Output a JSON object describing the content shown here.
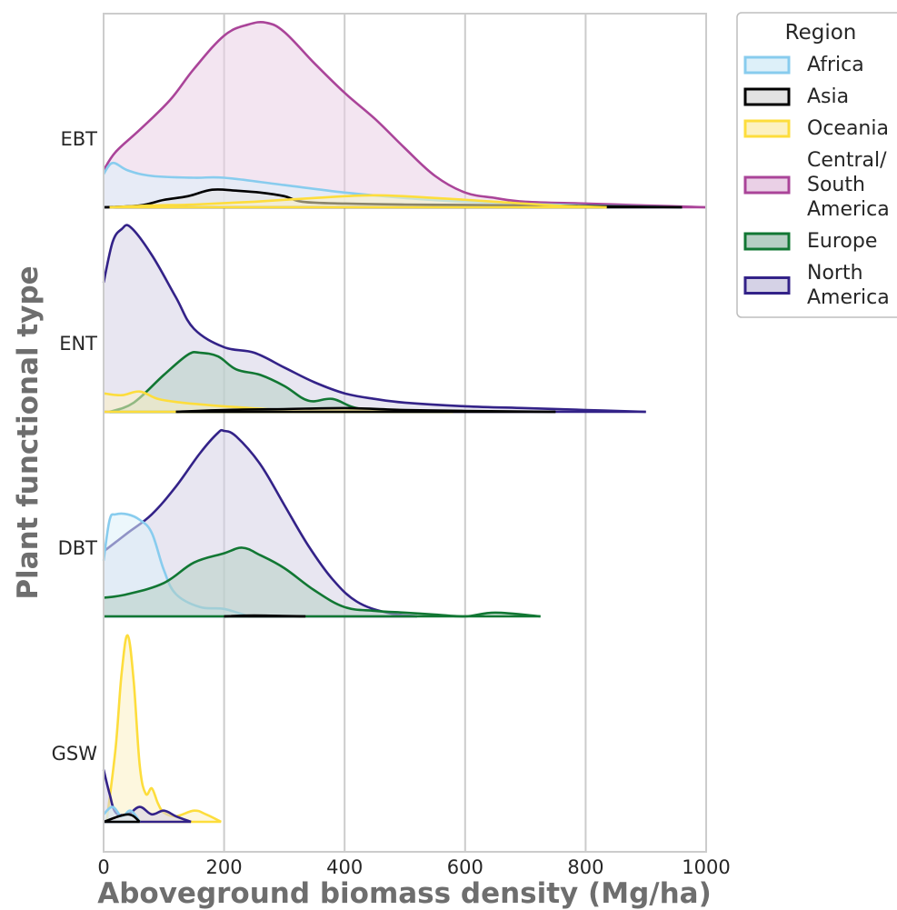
{
  "chart_data": {
    "type": "area",
    "subtype": "ridgeline-density",
    "xlabel": "Aboveground biomass density (Mg/ha)",
    "ylabel": "Plant functional type",
    "xlim": [
      0,
      1000
    ],
    "x_ticks": [
      0,
      200,
      400,
      600,
      800,
      1000
    ],
    "grid": "vertical",
    "categories": [
      "EBT",
      "ENT",
      "DBT",
      "GSW"
    ],
    "legend": {
      "title": "Region",
      "placement": "outside-top-right",
      "entries": [
        {
          "label": "Africa",
          "line": "Africa"
        },
        {
          "label": "Asia",
          "line": "Asia"
        },
        {
          "label": "Oceania",
          "line": "Oceania"
        },
        {
          "label": "Central/\nSouth\nAmerica",
          "line": "Central/ South America"
        },
        {
          "label": "Europe",
          "line": "Europe"
        },
        {
          "label": "North\nAmerica",
          "line": "North America"
        }
      ]
    },
    "region_colors": {
      "Africa": {
        "stroke": "#88ccee",
        "fill": "#ddf0f9"
      },
      "Asia": {
        "stroke": "#000000",
        "fill": "#e3e3e3"
      },
      "Oceania": {
        "stroke": "#fddd3c",
        "fill": "#fcf1c2"
      },
      "Central/ South America": {
        "stroke": "#aa4499",
        "fill": "#ead0e6"
      },
      "Europe": {
        "stroke": "#117733",
        "fill": "#b6cfc4"
      },
      "North America": {
        "stroke": "#332288",
        "fill": "#d5d2e6"
      }
    },
    "y_scale_note": "relative density per row, peak of tallest curve = 1",
    "series": [
      {
        "category": "EBT",
        "region": "Central/ South America",
        "x": [
          0,
          20,
          60,
          110,
          150,
          200,
          240,
          270,
          300,
          350,
          400,
          450,
          500,
          550,
          600,
          650,
          700,
          800,
          900,
          1000
        ],
        "y": [
          0.2,
          0.3,
          0.42,
          0.58,
          0.75,
          0.93,
          0.99,
          1.0,
          0.95,
          0.78,
          0.62,
          0.48,
          0.32,
          0.17,
          0.08,
          0.05,
          0.03,
          0.02,
          0.01,
          0.0
        ]
      },
      {
        "category": "EBT",
        "region": "Africa",
        "x": [
          0,
          15,
          40,
          80,
          150,
          200,
          300,
          400,
          500,
          600,
          800,
          960
        ],
        "y": [
          0.18,
          0.24,
          0.2,
          0.17,
          0.16,
          0.16,
          0.12,
          0.08,
          0.05,
          0.03,
          0.01,
          0.0
        ]
      },
      {
        "category": "EBT",
        "region": "Asia",
        "x": [
          0,
          60,
          100,
          140,
          180,
          220,
          260,
          300,
          330,
          400,
          500,
          700,
          960
        ],
        "y": [
          0.0,
          0.01,
          0.04,
          0.06,
          0.095,
          0.09,
          0.08,
          0.06,
          0.03,
          0.02,
          0.015,
          0.01,
          0.0
        ]
      },
      {
        "category": "EBT",
        "region": "Oceania",
        "x": [
          10,
          80,
          150,
          250,
          350,
          450,
          550,
          650,
          750,
          835
        ],
        "y": [
          0.0,
          0.01,
          0.015,
          0.03,
          0.05,
          0.065,
          0.05,
          0.03,
          0.01,
          0.0
        ]
      },
      {
        "category": "ENT",
        "region": "North America",
        "x": [
          0,
          15,
          30,
          45,
          80,
          120,
          150,
          200,
          250,
          300,
          350,
          400,
          450,
          500,
          600,
          700,
          800,
          900
        ],
        "y": [
          0.7,
          0.92,
          0.99,
          1.0,
          0.85,
          0.62,
          0.45,
          0.35,
          0.32,
          0.24,
          0.16,
          0.1,
          0.07,
          0.05,
          0.03,
          0.02,
          0.01,
          0.0
        ]
      },
      {
        "category": "ENT",
        "region": "Europe",
        "x": [
          10,
          50,
          100,
          140,
          160,
          190,
          220,
          260,
          300,
          340,
          380,
          420,
          480,
          580
        ],
        "y": [
          0.0,
          0.05,
          0.2,
          0.31,
          0.32,
          0.3,
          0.23,
          0.2,
          0.14,
          0.06,
          0.07,
          0.02,
          0.01,
          0.0
        ]
      },
      {
        "category": "ENT",
        "region": "Oceania",
        "x": [
          0,
          30,
          60,
          90,
          130,
          200,
          300,
          400,
          500,
          580
        ],
        "y": [
          0.1,
          0.09,
          0.11,
          0.07,
          0.05,
          0.03,
          0.01,
          0.01,
          0.005,
          0.0
        ]
      },
      {
        "category": "ENT",
        "region": "Asia",
        "x": [
          120,
          200,
          300,
          400,
          500,
          600,
          750
        ],
        "y": [
          0.0,
          0.01,
          0.015,
          0.02,
          0.01,
          0.005,
          0.0
        ]
      },
      {
        "category": "DBT",
        "region": "North America",
        "x": [
          0,
          40,
          80,
          120,
          160,
          190,
          200,
          220,
          260,
          300,
          340,
          380,
          420,
          470,
          520
        ],
        "y": [
          0.35,
          0.45,
          0.55,
          0.7,
          0.88,
          0.99,
          1.0,
          0.97,
          0.82,
          0.6,
          0.38,
          0.2,
          0.08,
          0.02,
          0.0
        ]
      },
      {
        "category": "DBT",
        "region": "Africa",
        "x": [
          0,
          10,
          20,
          40,
          60,
          80,
          100,
          120,
          160,
          200,
          240
        ],
        "y": [
          0.3,
          0.52,
          0.55,
          0.55,
          0.52,
          0.45,
          0.25,
          0.12,
          0.05,
          0.04,
          0.0
        ]
      },
      {
        "category": "DBT",
        "region": "Europe",
        "x": [
          0,
          40,
          100,
          150,
          200,
          230,
          260,
          300,
          350,
          400,
          450,
          500,
          550,
          600,
          650,
          725
        ],
        "y": [
          0.1,
          0.12,
          0.18,
          0.29,
          0.34,
          0.37,
          0.33,
          0.26,
          0.14,
          0.05,
          0.03,
          0.02,
          0.01,
          0.0,
          0.02,
          0.0
        ]
      },
      {
        "category": "DBT",
        "region": "Asia",
        "x": [
          200,
          250,
          335
        ],
        "y": [
          0.0,
          0.005,
          0.0
        ]
      },
      {
        "category": "GSW",
        "region": "Oceania",
        "x": [
          5,
          20,
          30,
          40,
          50,
          60,
          70,
          80,
          90,
          100,
          120,
          150,
          170,
          195
        ],
        "y": [
          0.0,
          0.4,
          0.8,
          1.0,
          0.75,
          0.3,
          0.15,
          0.18,
          0.1,
          0.05,
          0.03,
          0.06,
          0.04,
          0.0
        ]
      },
      {
        "category": "GSW",
        "region": "North America",
        "x": [
          0,
          10,
          20,
          40,
          60,
          80,
          100,
          120,
          145
        ],
        "y": [
          0.28,
          0.15,
          0.05,
          0.04,
          0.08,
          0.04,
          0.06,
          0.03,
          0.0
        ]
      },
      {
        "category": "GSW",
        "region": "Africa",
        "x": [
          0,
          15,
          30,
          45,
          60
        ],
        "y": [
          0.04,
          0.08,
          0.03,
          0.06,
          0.0
        ]
      },
      {
        "category": "GSW",
        "region": "Asia",
        "x": [
          0,
          40,
          60
        ],
        "y": [
          0.0,
          0.04,
          0.0
        ]
      }
    ]
  }
}
